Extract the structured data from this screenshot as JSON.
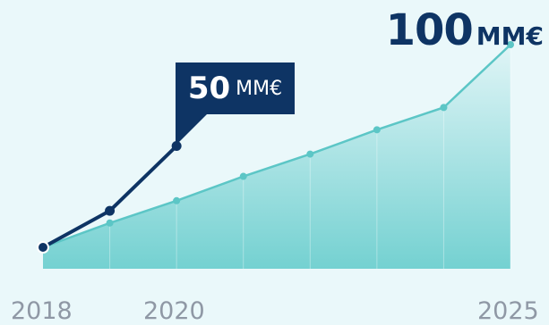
{
  "big_label": {
    "value": "100",
    "unit": "MM€"
  },
  "callout": {
    "value": "50",
    "unit": "MM€"
  },
  "colors": {
    "actual_line": "#0e3464",
    "plan_line": "#5cc6c6",
    "area": "#6ecfcf",
    "background": "#eaf8fa",
    "tick_text": "#8f98a5"
  },
  "chart_data": {
    "type": "line",
    "x": [
      2018,
      2019,
      2020,
      2021,
      2022,
      2023,
      2024,
      2025
    ],
    "tick_labels": [
      "2018",
      "2020",
      "2025"
    ],
    "ylim": [
      0,
      100
    ],
    "grid": false,
    "legend": "none",
    "series": [
      {
        "style": "area-line",
        "x": [
          2018,
          2019,
          2020,
          2021,
          2022,
          2023,
          2024,
          2025
        ],
        "values": [
          0,
          12,
          23,
          35,
          46,
          58,
          69,
          100
        ]
      },
      {
        "style": "bold-line",
        "x": [
          2018,
          2019,
          2020
        ],
        "values": [
          0,
          18,
          50
        ]
      }
    ],
    "annotations": [
      "100 MM€",
      "50 MM€"
    ]
  }
}
